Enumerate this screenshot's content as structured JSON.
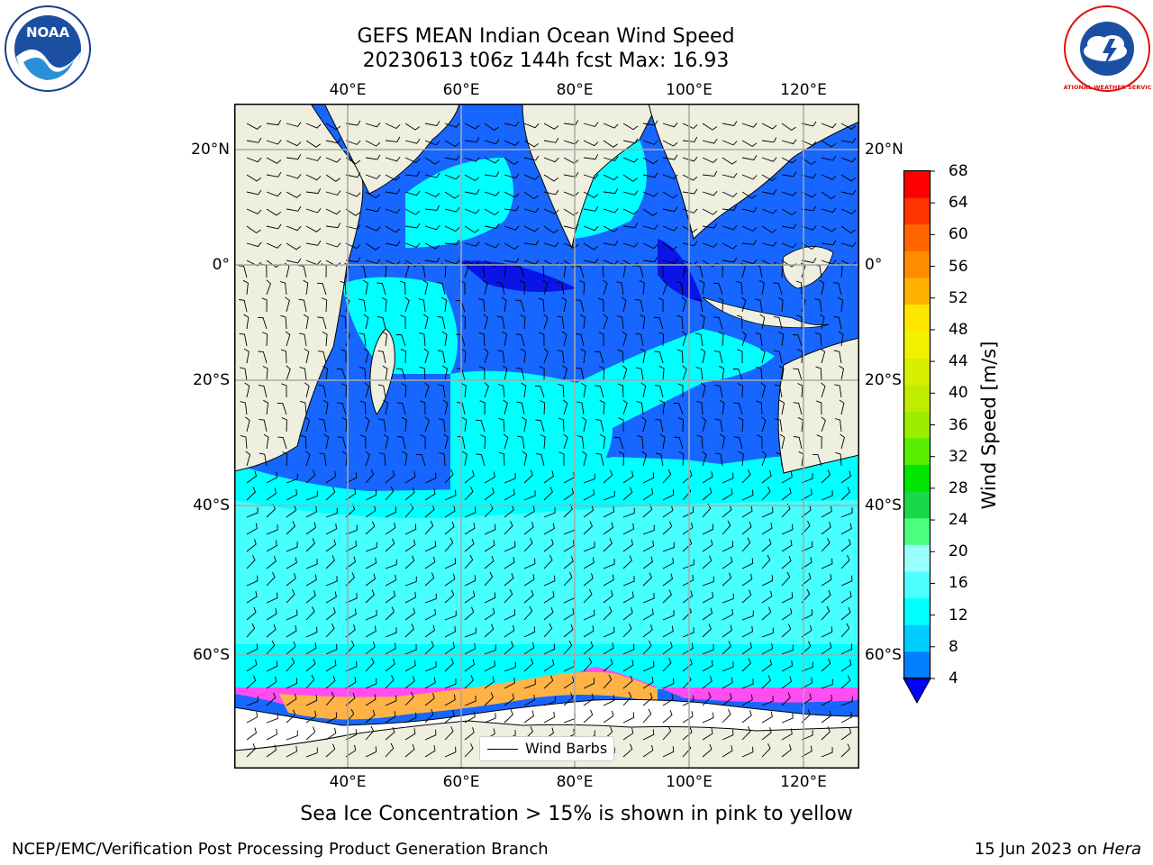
{
  "title": {
    "line1": "GEFS MEAN Indian Ocean Wind Speed",
    "line2": "20230613 t06z 144h fcst   Max: 16.93"
  },
  "logos": {
    "noaa_text": "NOAA",
    "nws_text": "NATIONAL WEATHER SERVICE"
  },
  "map": {
    "lon_ticks": [
      "40°E",
      "60°E",
      "80°E",
      "100°E",
      "120°E"
    ],
    "lat_ticks": [
      "20°N",
      "0°",
      "20°S",
      "40°S",
      "60°S"
    ],
    "legend_label": "Wind Barbs"
  },
  "colorbar": {
    "label": "Wind Speed [m/s]",
    "ticks": [
      "68",
      "64",
      "60",
      "56",
      "52",
      "48",
      "44",
      "40",
      "36",
      "32",
      "28",
      "24",
      "20",
      "16",
      "12",
      "8",
      "4"
    ],
    "colors": [
      "#ff0000",
      "#ff3300",
      "#ff6600",
      "#ff8c00",
      "#ffb300",
      "#ffe600",
      "#f2f200",
      "#d9ee00",
      "#c0ec00",
      "#9ced00",
      "#58ef00",
      "#00e600",
      "#19d94a",
      "#4dff80",
      "#99ffff",
      "#4dffff",
      "#00ffff",
      "#00ccff",
      "#0080ff"
    ],
    "extend_color": "#0000ff"
  },
  "palette": {
    "land": "#efefe0",
    "ice_white": "#ffffff",
    "wind_4_8": "#1766ff",
    "wind_lt4": "#0a14e6",
    "wind_8_12": "#00ffff",
    "wind_12_16": "#47ffff",
    "ice_pink": "#ff4df2",
    "ice_orange": "#ffb347"
  },
  "caption": "Sea Ice Concentration > 15% is shown in pink to yellow",
  "footer": {
    "left": "NCEP/EMC/Verification Post Processing Product Generation Branch",
    "right_date": "15 Jun 2023 on ",
    "right_machine": "Hera"
  }
}
